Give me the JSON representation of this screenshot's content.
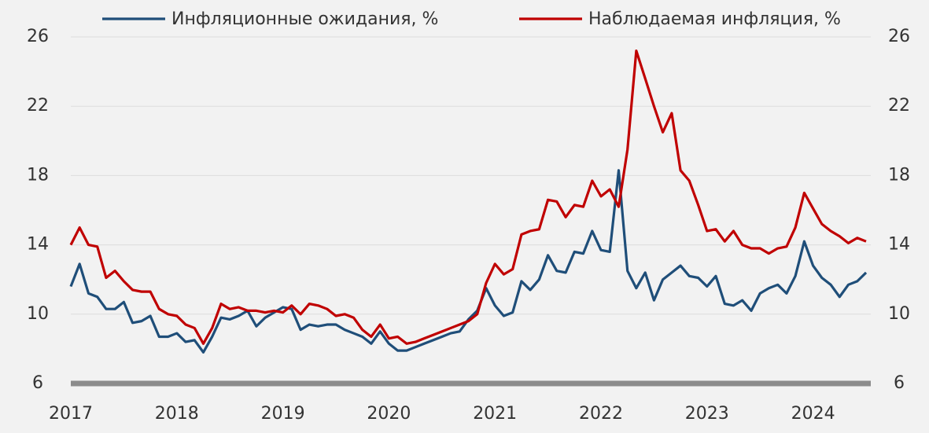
{
  "chart_data": {
    "type": "line",
    "x": [
      2017,
      2017.083,
      2017.167,
      2017.25,
      2017.333,
      2017.417,
      2017.5,
      2017.583,
      2017.667,
      2017.75,
      2017.833,
      2017.917,
      2018,
      2018.083,
      2018.167,
      2018.25,
      2018.333,
      2018.417,
      2018.5,
      2018.583,
      2018.667,
      2018.75,
      2018.833,
      2018.917,
      2019,
      2019.083,
      2019.167,
      2019.25,
      2019.333,
      2019.417,
      2019.5,
      2019.583,
      2019.667,
      2019.75,
      2019.833,
      2019.917,
      2020,
      2020.083,
      2020.167,
      2020.25,
      2020.333,
      2020.417,
      2020.5,
      2020.583,
      2020.667,
      2020.75,
      2020.833,
      2020.917,
      2021,
      2021.083,
      2021.167,
      2021.25,
      2021.333,
      2021.417,
      2021.5,
      2021.583,
      2021.667,
      2021.75,
      2021.833,
      2021.917,
      2022,
      2022.083,
      2022.167,
      2022.25,
      2022.333,
      2022.417,
      2022.5,
      2022.583,
      2022.667,
      2022.75,
      2022.833,
      2022.917,
      2023,
      2023.083,
      2023.167,
      2023.25,
      2023.333,
      2023.417,
      2023.5,
      2023.583,
      2023.667,
      2023.75,
      2023.833,
      2023.917,
      2024,
      2024.083,
      2024.167,
      2024.25,
      2024.333,
      2024.417,
      2024.5
    ],
    "series": [
      {
        "name": "Инфляционные ожидания, %",
        "color": "#1f4e79",
        "values": [
          11.6,
          12.9,
          11.2,
          11.0,
          10.3,
          10.3,
          10.7,
          9.5,
          9.6,
          9.9,
          8.7,
          8.7,
          8.9,
          8.4,
          8.5,
          7.8,
          8.7,
          9.8,
          9.7,
          9.9,
          10.2,
          9.3,
          9.8,
          10.1,
          10.4,
          10.3,
          9.1,
          9.4,
          9.3,
          9.4,
          9.4,
          9.1,
          8.9,
          8.7,
          8.3,
          9.0,
          8.3,
          7.9,
          7.9,
          8.1,
          8.3,
          8.5,
          8.7,
          8.9,
          9.0,
          9.7,
          10.2,
          11.5,
          10.5,
          9.9,
          10.1,
          11.9,
          11.4,
          12.0,
          13.4,
          12.5,
          12.4,
          13.6,
          13.5,
          14.8,
          13.7,
          13.6,
          18.3,
          12.5,
          11.5,
          12.4,
          10.8,
          12.0,
          12.4,
          12.8,
          12.2,
          12.1,
          11.6,
          12.2,
          10.6,
          10.5,
          10.8,
          10.2,
          11.2,
          11.5,
          11.7,
          11.2,
          12.2,
          14.2,
          12.8,
          12.1,
          11.7,
          11.0,
          11.7,
          11.9,
          12.4
        ]
      },
      {
        "name": "Наблюдаемая инфляция, %",
        "color": "#c00000",
        "axis": "y2",
        "values": [
          14.0,
          15.0,
          14.0,
          13.9,
          12.1,
          12.5,
          11.9,
          11.4,
          11.3,
          11.3,
          10.3,
          10.0,
          9.9,
          9.4,
          9.2,
          8.3,
          9.2,
          10.6,
          10.3,
          10.4,
          10.2,
          10.2,
          10.1,
          10.2,
          10.1,
          10.5,
          10.0,
          10.6,
          10.5,
          10.3,
          9.9,
          10.0,
          9.8,
          9.1,
          8.7,
          9.4,
          8.6,
          8.7,
          8.3,
          8.4,
          8.6,
          8.8,
          9.0,
          9.2,
          9.4,
          9.6,
          10.0,
          11.8,
          12.9,
          12.3,
          12.6,
          14.6,
          14.8,
          14.9,
          16.6,
          16.5,
          15.6,
          16.3,
          16.2,
          17.7,
          16.8,
          17.2,
          16.2,
          19.5,
          25.2,
          23.6,
          22.0,
          20.5,
          21.6,
          18.3,
          17.7,
          16.3,
          14.8,
          14.9,
          14.2,
          14.8,
          14.0,
          13.8,
          13.8,
          13.5,
          13.8,
          13.9,
          15.0,
          17.0,
          16.1,
          15.2,
          14.8,
          14.5,
          14.1,
          14.4,
          14.2
        ]
      }
    ],
    "xlim": [
      2017,
      2024.5
    ],
    "xticks": [
      2017,
      2018,
      2019,
      2020,
      2021,
      2022,
      2023,
      2024
    ],
    "ylim": [
      6,
      26
    ],
    "yticks": [
      6,
      10,
      14,
      18,
      22,
      26
    ],
    "y2lim": [
      6,
      26
    ],
    "y2ticks": [
      6,
      10,
      14,
      18,
      22,
      26
    ],
    "grid": true,
    "legend": "top"
  }
}
